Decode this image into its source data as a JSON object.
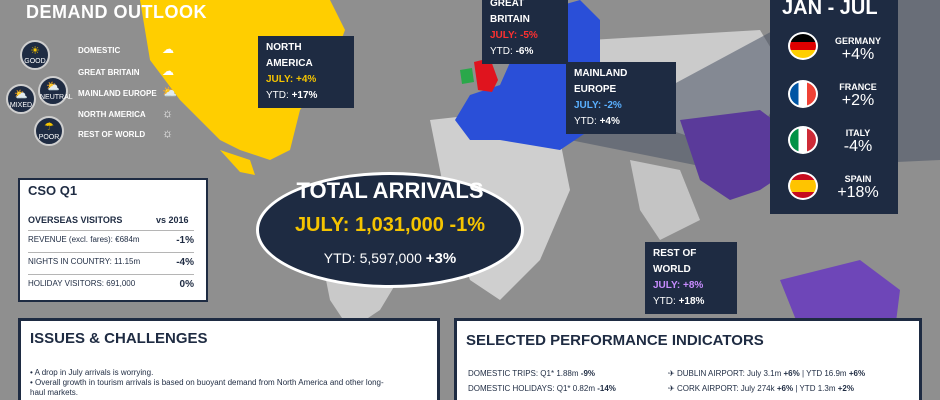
{
  "demand_outlook": {
    "title": "DEMAND OUTLOOK",
    "scale": [
      "GOOD",
      "NEUTRAL",
      "MIXED",
      "POOR"
    ],
    "rows": [
      {
        "label": "DOMESTIC",
        "icon": "cloud-icon"
      },
      {
        "label": "GREAT BRITAIN",
        "icon": "storm-cloud-icon"
      },
      {
        "label": "MAINLAND EUROPE",
        "icon": "sun-cloud-icon"
      },
      {
        "label": "NORTH AMERICA",
        "icon": "sun-icon"
      },
      {
        "label": "REST OF WORLD",
        "icon": "sun-icon"
      }
    ]
  },
  "callouts": {
    "north_america": {
      "name": "NORTH AMERICA",
      "july_label": "JULY:",
      "july": "+4%",
      "ytd_label": "YTD:",
      "ytd": "+17%"
    },
    "great_britain": {
      "name": "GREAT BRITAIN",
      "july_label": "JULY:",
      "july": "-5%",
      "ytd_label": "YTD:",
      "ytd": "-6%"
    },
    "mainland_europe": {
      "name": "MAINLAND EUROPE",
      "july_label": "JULY:",
      "july": "-2%",
      "ytd_label": "YTD:",
      "ytd": "+4%"
    },
    "rest_of_world": {
      "name": "REST OF WORLD",
      "july_label": "JULY:",
      "july": "+8%",
      "ytd_label": "YTD:",
      "ytd": "+18%"
    }
  },
  "jan_jul": {
    "title": "JAN - JUL",
    "countries": [
      {
        "name": "GERMANY",
        "value": "+4%"
      },
      {
        "name": "FRANCE",
        "value": "+2%"
      },
      {
        "name": "ITALY",
        "value": "-4%"
      },
      {
        "name": "SPAIN",
        "value": "+18%"
      }
    ]
  },
  "cso": {
    "title": "CSO Q1",
    "subtitle": "OVERSEAS VISITORS",
    "compare": "vs 2016",
    "rows": [
      {
        "label": "REVENUE (excl. fares): €684m",
        "value": "-1%"
      },
      {
        "label": "NIGHTS IN COUNTRY: 11.15m",
        "value": "-4%"
      },
      {
        "label": "HOLIDAY VISITORS: 691,000",
        "value": "0%"
      }
    ]
  },
  "total": {
    "title": "TOTAL ARRIVALS",
    "july": "JULY: 1,031,000 -1%",
    "ytd_label": "YTD: 5,597,000",
    "ytd_change": "+3%"
  },
  "issues": {
    "title": "ISSUES & CHALLENGES",
    "items": [
      "A drop in July arrivals is worrying.",
      "Overall growth in tourism arrivals is based on buoyant demand from North America and other long-haul markets."
    ]
  },
  "performance": {
    "title": "SELECTED PERFORMANCE INDICATORS",
    "left": [
      {
        "label": "DOMESTIC TRIPS: Q1* 1.88m",
        "value": "-9%"
      },
      {
        "label": "DOMESTIC HOLIDAYS: Q1* 0.82m",
        "value": "-14%"
      }
    ],
    "right": [
      {
        "label": "DUBLIN AIRPORT:  July 3.1m",
        "value": "+6%",
        "ytd": "| YTD 16.9m",
        "ytd_value": "+6%"
      },
      {
        "label": "CORK AIRPORT:  July 274k",
        "value": "+6%",
        "ytd": "| YTD 1.3m",
        "ytd_value": "+2%"
      }
    ]
  },
  "colors": {
    "navy": "#1e2b42",
    "yellow": "#f5c400",
    "red": "#ff3030",
    "blue": "#2a4fd8",
    "purple": "#5a3a9a"
  }
}
